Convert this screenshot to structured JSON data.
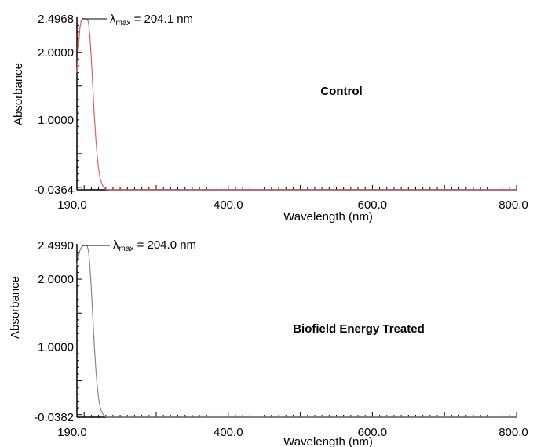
{
  "chart_data": [
    {
      "type": "line",
      "title": "Control",
      "xlabel": "Wavelength (nm)",
      "ylabel": "Absorbance",
      "xlim": [
        190.0,
        800.0
      ],
      "ylim": [
        -0.0364,
        2.4968
      ],
      "x_ticks": [
        "190.0",
        "400.0",
        "600.0",
        "800.0"
      ],
      "y_ticks": [
        "2.4968",
        "2.0000",
        "1.0000",
        "-0.0364"
      ],
      "line_color": "#e06060",
      "annotation": {
        "symbol": "λ",
        "subscript": "max",
        "text": "= 204.1 nm",
        "x": 204.1,
        "y": 2.4968
      },
      "series": [
        {
          "x": [
            190,
            192,
            194,
            196,
            198,
            200,
            202,
            204.1,
            206,
            208,
            210,
            212,
            214,
            216,
            218,
            220,
            222,
            224,
            226,
            228,
            230,
            235,
            240,
            260,
            300,
            400,
            500,
            600,
            700,
            800
          ],
          "y": [
            1.7,
            2.05,
            2.35,
            2.48,
            2.5,
            2.5,
            2.5,
            2.4968,
            2.45,
            2.25,
            1.9,
            1.5,
            1.1,
            0.75,
            0.48,
            0.28,
            0.15,
            0.07,
            0.02,
            -0.01,
            -0.03,
            -0.036,
            -0.036,
            -0.036,
            -0.036,
            -0.036,
            -0.036,
            -0.036,
            -0.036,
            -0.036
          ]
        }
      ]
    },
    {
      "type": "line",
      "title": "Biofield Energy Treated",
      "xlabel": "Wavelength (nm)",
      "ylabel": "Absorbance",
      "xlim": [
        190.0,
        800.0
      ],
      "ylim": [
        -0.0382,
        2.499
      ],
      "x_ticks": [
        "190.0",
        "400.0",
        "600.0",
        "800.0"
      ],
      "y_ticks": [
        "2.4990",
        "2.0000",
        "1.0000",
        "-0.0382"
      ],
      "line_color": "#888888",
      "annotation": {
        "symbol": "λ",
        "subscript": "max",
        "text": "= 204.0 nm",
        "x": 204.0,
        "y": 2.499
      },
      "series": [
        {
          "x": [
            190,
            192,
            194,
            196,
            198,
            200,
            202,
            204.0,
            206,
            208,
            210,
            212,
            214,
            216,
            218,
            220,
            222,
            224,
            226,
            228,
            230,
            235,
            240,
            260,
            300,
            400,
            500,
            600,
            700,
            800
          ],
          "y": [
            2.2,
            2.32,
            2.42,
            2.47,
            2.49,
            2.5,
            2.5,
            2.499,
            2.42,
            2.2,
            1.85,
            1.45,
            1.05,
            0.7,
            0.44,
            0.25,
            0.12,
            0.05,
            0.01,
            -0.02,
            -0.035,
            -0.038,
            -0.038,
            -0.038,
            -0.038,
            -0.038,
            -0.038,
            -0.038,
            -0.038,
            -0.038
          ]
        }
      ]
    }
  ]
}
